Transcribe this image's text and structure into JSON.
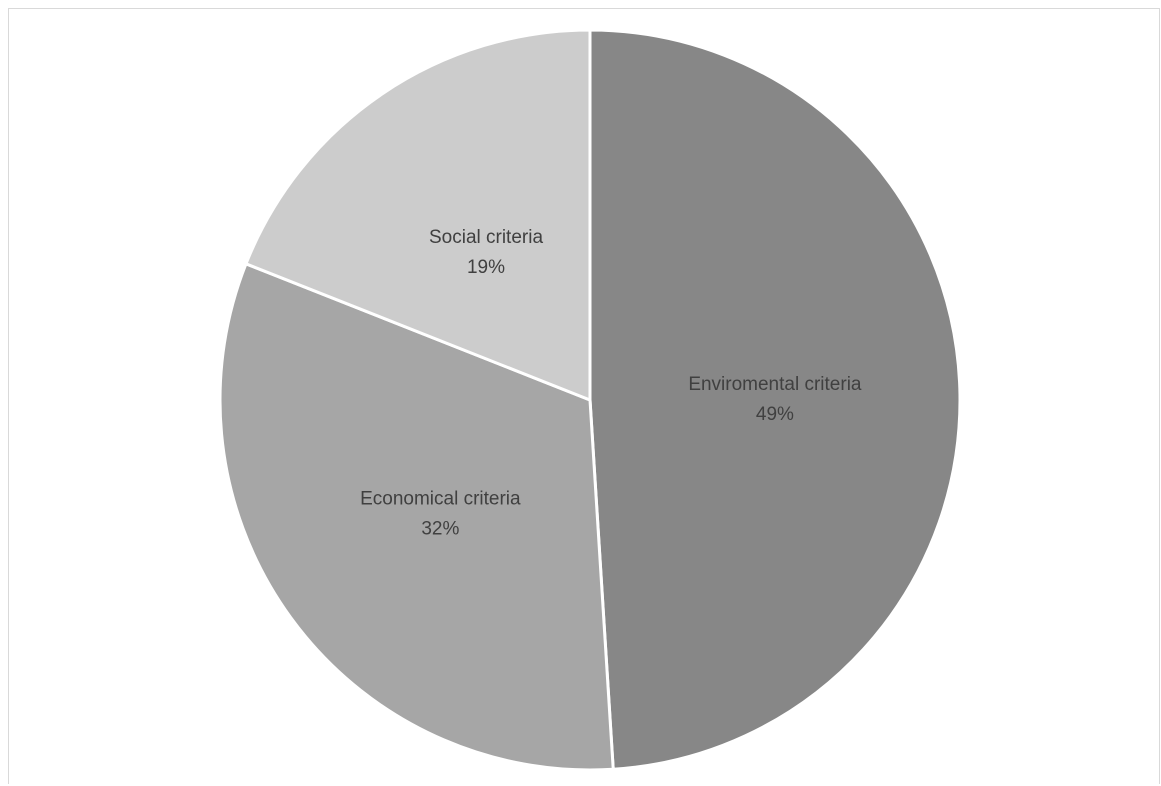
{
  "chart_data": {
    "type": "pie",
    "title": "",
    "slices": [
      {
        "label": "Enviromental criteria",
        "value": 49,
        "value_label": "49%",
        "color": "#878787"
      },
      {
        "label": "Economical criteria",
        "value": 32,
        "value_label": "32%",
        "color": "#a6a6a6"
      },
      {
        "label": "Social criteria",
        "value": 19,
        "value_label": "19%",
        "color": "#cccccc"
      }
    ],
    "start_angle_deg": 0,
    "direction": "clockwise",
    "legend": "none",
    "slice_separator_color": "#ffffff"
  }
}
